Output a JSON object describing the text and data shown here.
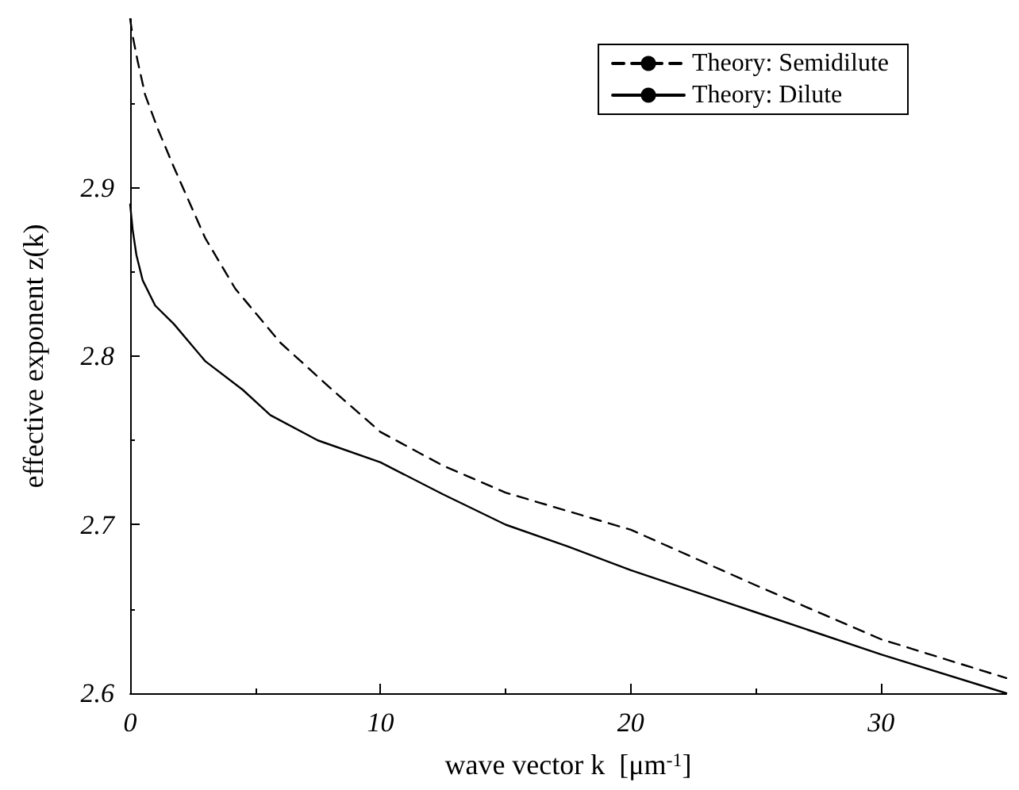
{
  "chart_data": {
    "type": "line",
    "xlabel": "wave vector k  [μm$^{-1}$]",
    "ylabel": "effective exponent z(k)",
    "xlim": [
      0,
      35
    ],
    "xticks": [
      0,
      10,
      20,
      30
    ],
    "ylim": [
      2.6,
      3.0
    ],
    "yticks": [
      2.6,
      2.7,
      2.8,
      2.9
    ],
    "grid": false,
    "legend": "top right",
    "marker": "none",
    "series": [
      {
        "name": "Theory: Semidilute",
        "color": "#000000",
        "line_style": "dashed",
        "x": [
          0,
          0.1,
          0.3,
          0.6,
          1.1,
          1.75,
          3,
          4.2,
          6,
          8,
          10,
          12.5,
          15,
          17.5,
          20,
          25,
          30,
          35
        ],
        "values": [
          3.0,
          2.99,
          2.975,
          2.955,
          2.935,
          2.912,
          2.87,
          2.84,
          2.808,
          2.781,
          2.755,
          2.735,
          2.719,
          2.708,
          2.697,
          2.664,
          2.632,
          2.609
        ]
      },
      {
        "name": "Theory: Dilute",
        "color": "#000000",
        "line_style": "solid",
        "x": [
          0,
          0.1,
          0.25,
          0.5,
          1,
          1.75,
          3,
          4.5,
          5.6,
          7.5,
          10,
          12.5,
          15,
          17.5,
          20,
          25,
          30,
          35
        ],
        "values": [
          2.89,
          2.875,
          2.86,
          2.845,
          2.83,
          2.819,
          2.797,
          2.78,
          2.765,
          2.75,
          2.737,
          2.718,
          2.7,
          2.687,
          2.673,
          2.648,
          2.623,
          2.6
        ]
      }
    ]
  }
}
